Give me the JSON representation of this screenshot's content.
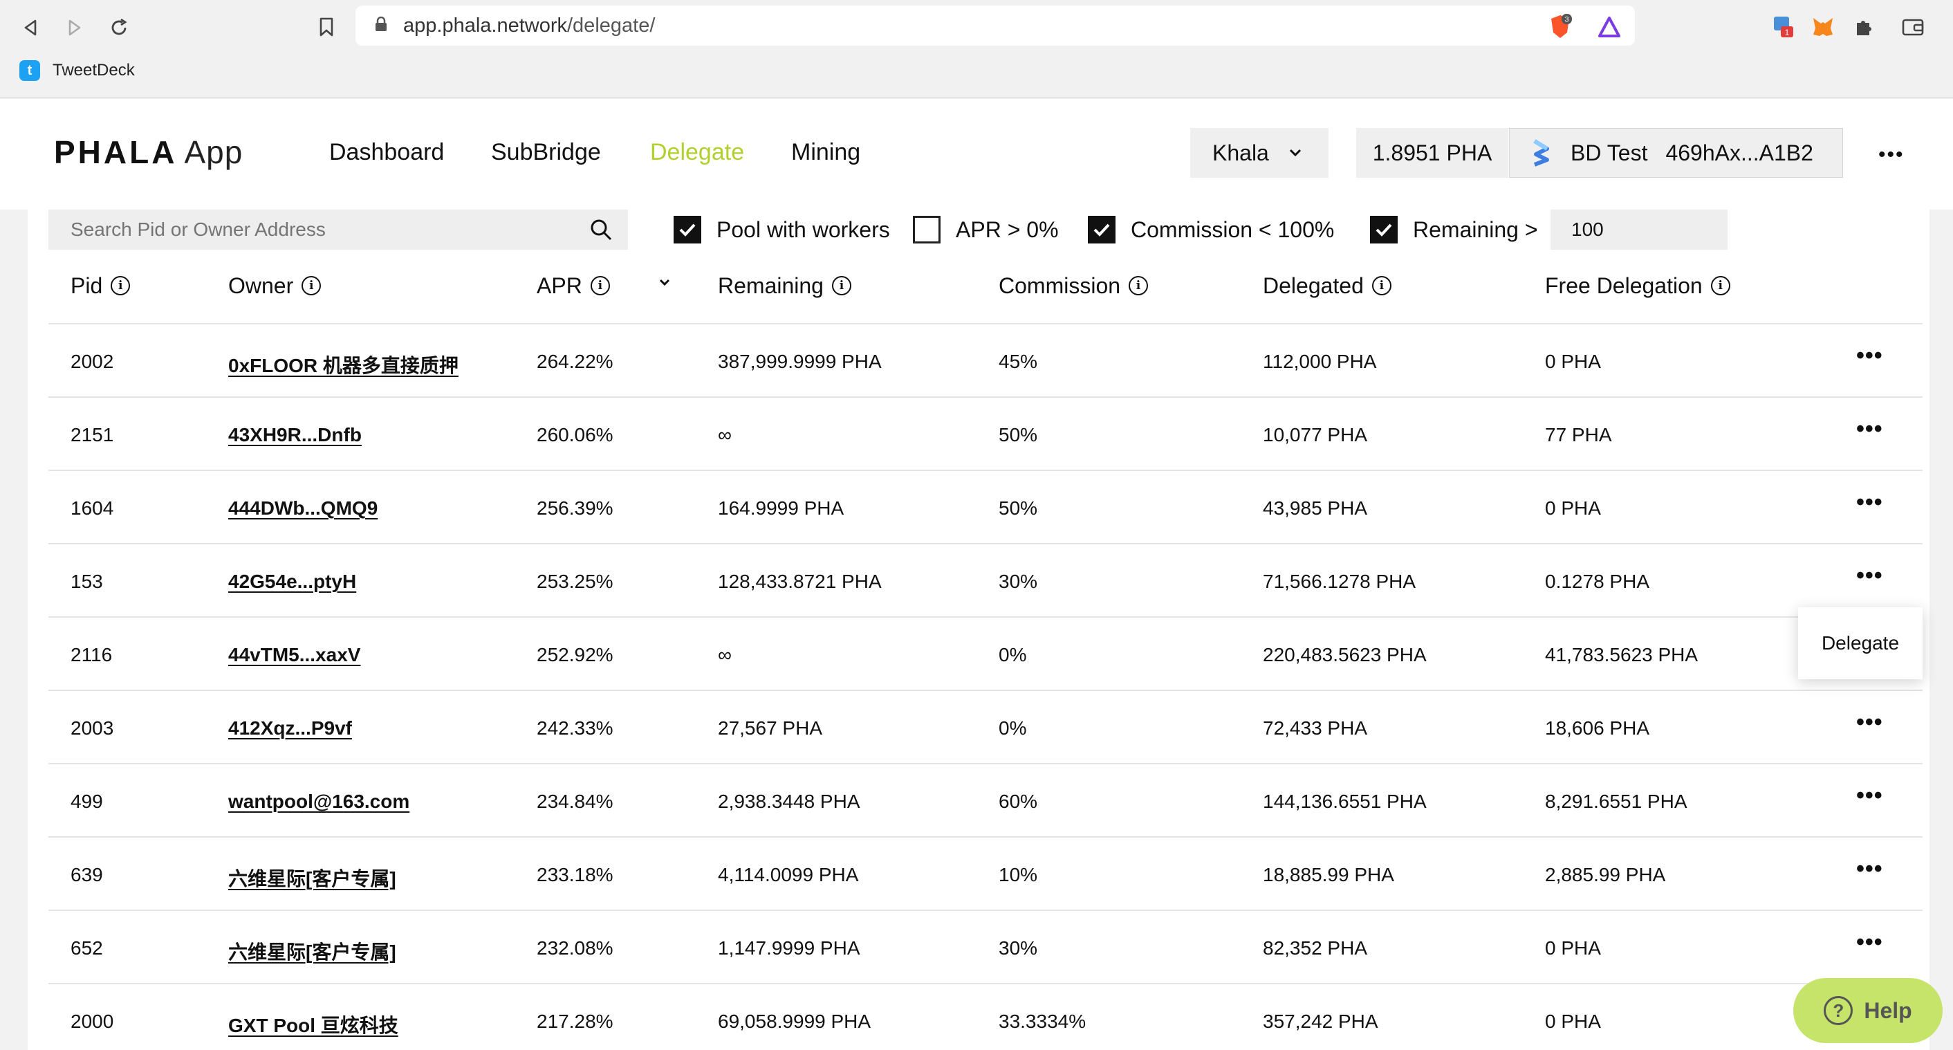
{
  "browser": {
    "url_host": "app.phala.network",
    "url_path": "/delegate/",
    "bookmark": "TweetDeck",
    "brave_badge": "3",
    "ext_badge": "1"
  },
  "header": {
    "logo": "PHALA",
    "logo_suffix": "App",
    "nav": [
      "Dashboard",
      "SubBridge",
      "Delegate",
      "Mining"
    ],
    "active_nav": "Delegate",
    "network": "Khala",
    "balance": "1.8951 PHA",
    "account_name": "BD Test",
    "account_address": "469hAx...A1B2",
    "accent_color": "#b0d12d"
  },
  "filters": {
    "search_placeholder": "Search Pid or Owner Address",
    "pool_with_workers": {
      "label": "Pool with workers",
      "checked": true
    },
    "apr": {
      "label": "APR > 0%",
      "checked": false
    },
    "commission": {
      "label": "Commission < 100%",
      "checked": true
    },
    "remaining": {
      "label": "Remaining >",
      "checked": true,
      "value": "100"
    }
  },
  "table": {
    "columns": [
      "Pid",
      "Owner",
      "APR",
      "Remaining",
      "Commission",
      "Delegated",
      "Free Delegation"
    ],
    "rows": [
      {
        "pid": "2002",
        "owner": "0xFLOOR 机器多直接质押",
        "apr": "264.22%",
        "remaining": "387,999.9999 PHA",
        "commission": "45%",
        "delegated": "112,000 PHA",
        "free": "0 PHA"
      },
      {
        "pid": "2151",
        "owner": "43XH9R...Dnfb",
        "apr": "260.06%",
        "remaining": "∞",
        "commission": "50%",
        "delegated": "10,077 PHA",
        "free": "77 PHA"
      },
      {
        "pid": "1604",
        "owner": "444DWb...QMQ9",
        "apr": "256.39%",
        "remaining": "164.9999 PHA",
        "commission": "50%",
        "delegated": "43,985 PHA",
        "free": "0 PHA"
      },
      {
        "pid": "153",
        "owner": "42G54e...ptyH",
        "apr": "253.25%",
        "remaining": "128,433.8721 PHA",
        "commission": "30%",
        "delegated": "71,566.1278 PHA",
        "free": "0.1278 PHA"
      },
      {
        "pid": "2116",
        "owner": "44vTM5...xaxV",
        "apr": "252.92%",
        "remaining": "∞",
        "commission": "0%",
        "delegated": "220,483.5623 PHA",
        "free": "41,783.5623 PHA"
      },
      {
        "pid": "2003",
        "owner": "412Xqz...P9vf",
        "apr": "242.33%",
        "remaining": "27,567 PHA",
        "commission": "0%",
        "delegated": "72,433 PHA",
        "free": "18,606 PHA"
      },
      {
        "pid": "499",
        "owner": "wantpool@163.com",
        "apr": "234.84%",
        "remaining": "2,938.3448 PHA",
        "commission": "60%",
        "delegated": "144,136.6551 PHA",
        "free": "8,291.6551 PHA"
      },
      {
        "pid": "639",
        "owner": "六维星际[客户专属]",
        "apr": "233.18%",
        "remaining": "4,114.0099 PHA",
        "commission": "10%",
        "delegated": "18,885.99 PHA",
        "free": "2,885.99 PHA"
      },
      {
        "pid": "652",
        "owner": "六维星际[客户专属]",
        "apr": "232.08%",
        "remaining": "1,147.9999 PHA",
        "commission": "30%",
        "delegated": "82,352 PHA",
        "free": "0 PHA"
      },
      {
        "pid": "2000",
        "owner": "GXT Pool 亘炫科技",
        "apr": "217.28%",
        "remaining": "69,058.9999 PHA",
        "commission": "33.3334%",
        "delegated": "357,242 PHA",
        "free": "0 PHA"
      }
    ]
  },
  "row_menu": {
    "label": "Delegate"
  },
  "help": {
    "label": "Help"
  }
}
